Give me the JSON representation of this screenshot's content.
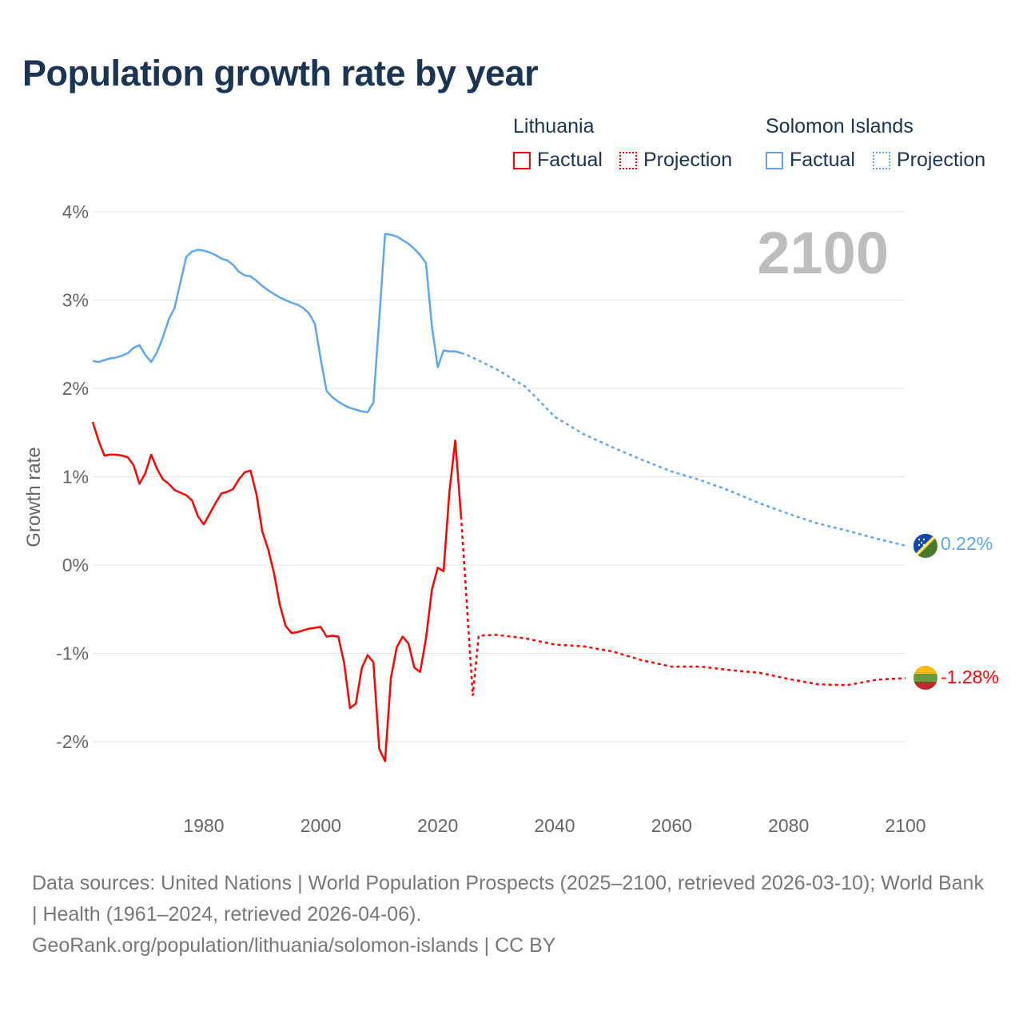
{
  "title": "Population growth rate by year",
  "legend": {
    "groups": [
      {
        "name": "Lithuania",
        "color": "#ff0000",
        "factual": "Factual",
        "projection": "Projection"
      },
      {
        "name": "Solomon Islands",
        "color": "#5ea6ee",
        "factual": "Factual",
        "projection": "Projection"
      }
    ]
  },
  "chart_data": {
    "type": "line",
    "title": "Population growth rate by year",
    "xlabel": "",
    "ylabel": "Growth rate",
    "xlim": [
      1961,
      2100
    ],
    "ylim": [
      -2.5,
      4
    ],
    "x_ticks": [
      1980,
      2000,
      2020,
      2040,
      2060,
      2080,
      2100
    ],
    "x_tick_labels": [
      "1980",
      "2000",
      "2020",
      "2040",
      "2060",
      "2080",
      "2100"
    ],
    "y_ticks": [
      4,
      3,
      2,
      1,
      0,
      -1,
      -2
    ],
    "y_tick_labels": [
      "4%",
      "3%",
      "2%",
      "1%",
      "0%",
      "-1%",
      "-2%"
    ],
    "grid": true,
    "year_indicator": "2100",
    "series": [
      {
        "name": "Lithuania",
        "color": "#ff0000",
        "end_label": "-1.28%",
        "factual": {
          "x": [
            1961,
            1962,
            1963,
            1964,
            1965,
            1966,
            1967,
            1968,
            1969,
            1970,
            1971,
            1972,
            1973,
            1974,
            1975,
            1976,
            1977,
            1978,
            1979,
            1980,
            1981,
            1982,
            1983,
            1984,
            1985,
            1986,
            1987,
            1988,
            1989,
            1990,
            1991,
            1992,
            1993,
            1994,
            1995,
            1996,
            1997,
            1998,
            1999,
            2000,
            2001,
            2002,
            2003,
            2004,
            2005,
            2006,
            2007,
            2008,
            2009,
            2010,
            2011,
            2012,
            2013,
            2014,
            2015,
            2016,
            2017,
            2018,
            2019,
            2020,
            2021,
            2022,
            2023,
            2024
          ],
          "y": [
            1.62,
            1.41,
            1.24,
            1.25,
            1.25,
            1.24,
            1.22,
            1.13,
            0.92,
            1.04,
            1.25,
            1.09,
            0.97,
            0.92,
            0.85,
            0.82,
            0.79,
            0.73,
            0.55,
            0.46,
            0.58,
            0.7,
            0.81,
            0.83,
            0.86,
            0.97,
            1.05,
            1.07,
            0.8,
            0.38,
            0.18,
            -0.09,
            -0.45,
            -0.69,
            -0.77,
            -0.76,
            -0.74,
            -0.72,
            -0.71,
            -0.7,
            -0.81,
            -0.8,
            -0.81,
            -1.11,
            -1.62,
            -1.57,
            -1.17,
            -1.02,
            -1.1,
            -2.08,
            -2.22,
            -1.28,
            -0.93,
            -0.81,
            -0.89,
            -1.16,
            -1.21,
            -0.83,
            -0.28,
            -0.03,
            -0.07,
            0.83,
            1.41,
            0.55
          ]
        },
        "projection": {
          "x": [
            2024,
            2025,
            2026,
            2027,
            2030,
            2035,
            2040,
            2045,
            2050,
            2055,
            2060,
            2065,
            2070,
            2075,
            2080,
            2085,
            2090,
            2095,
            2100
          ],
          "y": [
            0.55,
            -0.47,
            -1.48,
            -0.8,
            -0.79,
            -0.83,
            -0.9,
            -0.92,
            -0.98,
            -1.08,
            -1.15,
            -1.15,
            -1.19,
            -1.22,
            -1.29,
            -1.35,
            -1.36,
            -1.3,
            -1.28
          ]
        }
      },
      {
        "name": "Solomon Islands",
        "color": "#5ea6ee",
        "end_label": "0.22%",
        "factual": {
          "x": [
            1961,
            1962,
            1963,
            1964,
            1965,
            1966,
            1967,
            1968,
            1969,
            1970,
            1971,
            1972,
            1973,
            1974,
            1975,
            1976,
            1977,
            1978,
            1979,
            1980,
            1981,
            1982,
            1983,
            1984,
            1985,
            1986,
            1987,
            1988,
            1989,
            1990,
            1991,
            1992,
            1993,
            1994,
            1995,
            1996,
            1997,
            1998,
            1999,
            2000,
            2001,
            2002,
            2003,
            2004,
            2005,
            2006,
            2007,
            2008,
            2009,
            2010,
            2011,
            2012,
            2013,
            2014,
            2015,
            2016,
            2017,
            2018,
            2019,
            2020,
            2021,
            2022,
            2023,
            2024
          ],
          "y": [
            2.31,
            2.3,
            2.32,
            2.34,
            2.35,
            2.37,
            2.4,
            2.46,
            2.49,
            2.38,
            2.3,
            2.41,
            2.58,
            2.78,
            2.91,
            3.2,
            3.49,
            3.55,
            3.57,
            3.56,
            3.54,
            3.51,
            3.47,
            3.45,
            3.4,
            3.32,
            3.28,
            3.27,
            3.22,
            3.16,
            3.11,
            3.07,
            3.03,
            3.0,
            2.97,
            2.95,
            2.91,
            2.85,
            2.73,
            2.33,
            1.97,
            1.9,
            1.85,
            1.81,
            1.78,
            1.76,
            1.74,
            1.73,
            1.84,
            2.78,
            3.75,
            3.74,
            3.72,
            3.68,
            3.64,
            3.58,
            3.51,
            3.42,
            2.7,
            2.24,
            2.43,
            2.42,
            2.42,
            2.4
          ]
        },
        "projection": {
          "x": [
            2024,
            2025,
            2030,
            2035,
            2040,
            2045,
            2050,
            2055,
            2060,
            2065,
            2070,
            2075,
            2080,
            2085,
            2090,
            2095,
            2100
          ],
          "y": [
            2.4,
            2.38,
            2.22,
            2.02,
            1.68,
            1.48,
            1.33,
            1.19,
            1.06,
            0.96,
            0.84,
            0.7,
            0.58,
            0.47,
            0.39,
            0.3,
            0.22
          ]
        }
      }
    ]
  },
  "footer": {
    "sources": "Data sources: United Nations | World Population Prospects (2025–2100, retrieved 2026-03-10); World Bank | Health (1961–2024, retrieved 2026-04-06).",
    "credit": "GeoRank.org/population/lithuania/solomon-islands | CC BY"
  }
}
